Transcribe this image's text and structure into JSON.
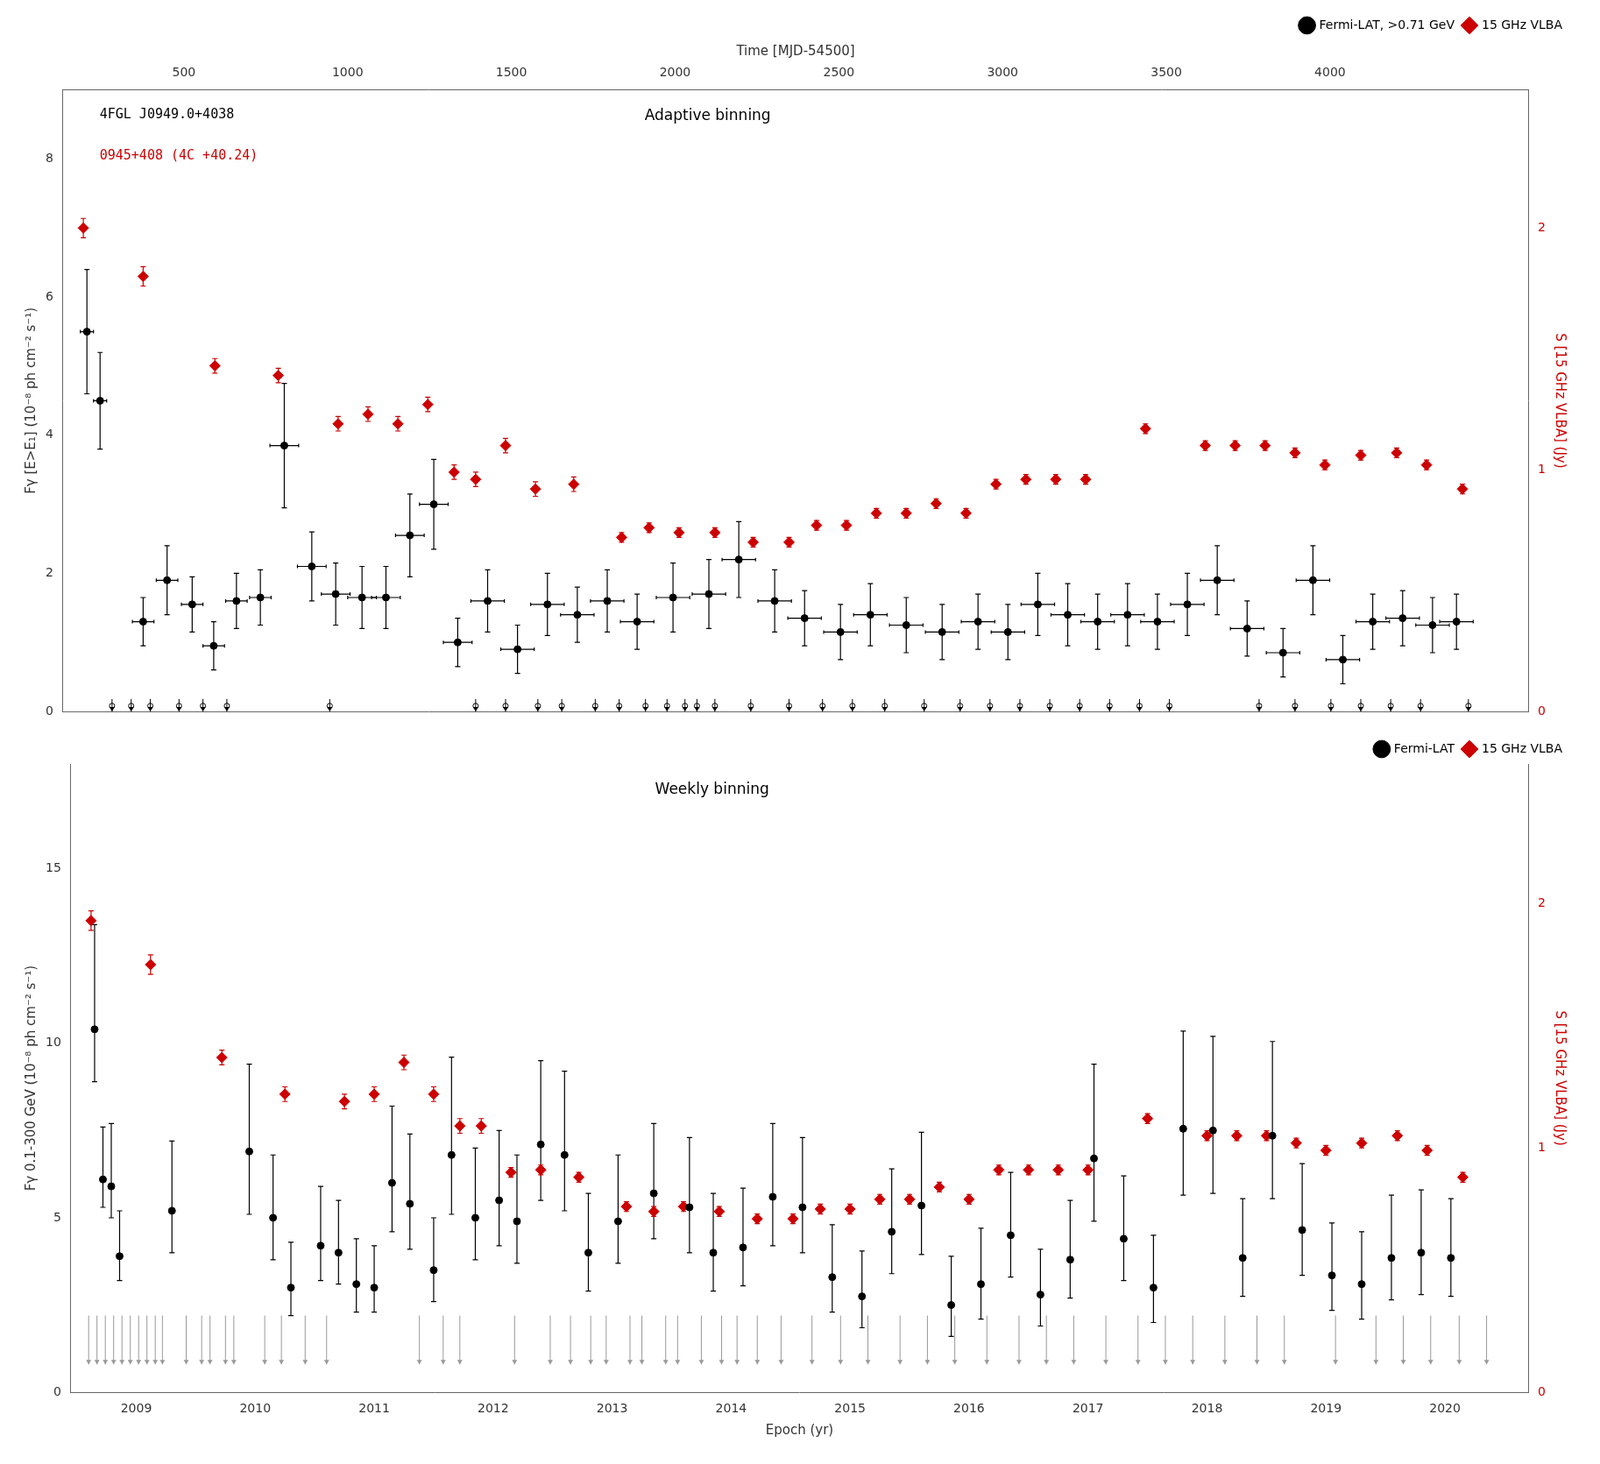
{
  "chart_data": [
    {
      "type": "scatter",
      "x2label": "Time [MJD-54500]",
      "ylabel": "Fγ [E>E₁] (10⁻⁸ ph cm⁻² s⁻¹)",
      "y2label": "S [15 GHz VLBA] (Jy)",
      "xlim": [
        2008.45,
        2020.7
      ],
      "x2lim": [
        130.8625,
        4605.175
      ],
      "x2ticks": [
        500,
        1000,
        1500,
        2000,
        2500,
        3000,
        3500,
        4000
      ],
      "ylim": [
        0,
        9
      ],
      "yticks": [
        0,
        2,
        4,
        6,
        8
      ],
      "y2lim": [
        0,
        2.571
      ],
      "y2ticks": [
        0,
        1,
        2
      ],
      "grid": false,
      "legend": "upper right",
      "source_labels": [
        {
          "text": "4FGL J0949.0+4038",
          "color": "#000000"
        },
        {
          "text": "0945+408 (4C +40.24)",
          "color": "#cc0000"
        }
      ],
      "binning_label": "Adaptive binning",
      "series": [
        {
          "name": "Fermi-LAT, >0.71 GeV",
          "color": "#000000",
          "marker": "circle",
          "axis": "y",
          "x": [
            2008.65,
            2008.76,
            2009.12,
            2009.32,
            2009.53,
            2009.71,
            2009.9,
            2010.1,
            2010.3,
            2010.53,
            2010.73,
            2010.95,
            2011.15,
            2011.35,
            2011.55,
            2011.75,
            2012.0,
            2012.25,
            2012.5,
            2012.75,
            2013.0,
            2013.25,
            2013.55,
            2013.85,
            2014.1,
            2014.4,
            2014.65,
            2014.95,
            2015.2,
            2015.5,
            2015.8,
            2016.1,
            2016.35,
            2016.6,
            2016.85,
            2017.1,
            2017.35,
            2017.6,
            2017.85,
            2018.1,
            2018.35,
            2018.65,
            2018.9,
            2019.15,
            2019.4,
            2019.65,
            2019.9,
            2020.1
          ],
          "values": [
            5.5,
            4.5,
            1.3,
            1.9,
            1.55,
            0.95,
            1.6,
            1.65,
            3.85,
            2.1,
            1.7,
            1.65,
            1.65,
            2.55,
            3.0,
            1.0,
            1.6,
            0.9,
            1.55,
            1.4,
            1.6,
            1.3,
            1.65,
            1.7,
            2.2,
            1.6,
            1.35,
            1.15,
            1.4,
            1.25,
            1.15,
            1.3,
            1.15,
            1.55,
            1.4,
            1.3,
            1.4,
            1.3,
            1.55,
            1.9,
            1.2,
            0.85,
            1.9,
            0.75,
            1.3,
            1.35,
            1.25,
            1.3
          ],
          "yerr_lo": [
            0.9,
            0.7,
            0.35,
            0.5,
            0.4,
            0.35,
            0.4,
            0.4,
            0.9,
            0.5,
            0.45,
            0.45,
            0.45,
            0.6,
            0.65,
            0.35,
            0.45,
            0.35,
            0.45,
            0.4,
            0.45,
            0.4,
            0.5,
            0.5,
            0.55,
            0.45,
            0.4,
            0.4,
            0.45,
            0.4,
            0.4,
            0.4,
            0.4,
            0.45,
            0.45,
            0.4,
            0.45,
            0.4,
            0.45,
            0.5,
            0.4,
            0.35,
            0.5,
            0.35,
            0.4,
            0.4,
            0.4,
            0.4
          ],
          "yerr_hi": [
            0.9,
            0.7,
            0.35,
            0.5,
            0.4,
            0.35,
            0.4,
            0.4,
            0.9,
            0.5,
            0.45,
            0.45,
            0.45,
            0.6,
            0.65,
            0.35,
            0.45,
            0.35,
            0.45,
            0.4,
            0.45,
            0.4,
            0.5,
            0.5,
            0.55,
            0.45,
            0.4,
            0.4,
            0.45,
            0.4,
            0.4,
            0.4,
            0.4,
            0.45,
            0.45,
            0.4,
            0.45,
            0.4,
            0.45,
            0.5,
            0.4,
            0.35,
            0.5,
            0.35,
            0.4,
            0.4,
            0.4,
            0.4
          ],
          "xerr": [
            0.055,
            0.055,
            0.09,
            0.09,
            0.09,
            0.09,
            0.09,
            0.09,
            0.12,
            0.12,
            0.12,
            0.12,
            0.12,
            0.12,
            0.12,
            0.12,
            0.14,
            0.14,
            0.14,
            0.14,
            0.14,
            0.14,
            0.14,
            0.14,
            0.14,
            0.14,
            0.14,
            0.14,
            0.14,
            0.14,
            0.14,
            0.14,
            0.14,
            0.14,
            0.14,
            0.14,
            0.14,
            0.14,
            0.14,
            0.14,
            0.14,
            0.14,
            0.14,
            0.14,
            0.14,
            0.14,
            0.14,
            0.14
          ]
        },
        {
          "name": "15 GHz VLBA",
          "color": "#cc0000",
          "marker": "diamond",
          "axis": "y2",
          "x": [
            2008.62,
            2009.12,
            2009.72,
            2010.25,
            2010.75,
            2011.0,
            2011.25,
            2011.5,
            2011.72,
            2011.9,
            2012.15,
            2012.4,
            2012.72,
            2013.12,
            2013.35,
            2013.6,
            2013.9,
            2014.22,
            2014.52,
            2014.75,
            2015.0,
            2015.25,
            2015.5,
            2015.75,
            2016.0,
            2016.25,
            2016.5,
            2016.75,
            2017.0,
            2017.5,
            2018.0,
            2018.25,
            2018.5,
            2018.75,
            2019.0,
            2019.3,
            2019.6,
            2019.85,
            2020.15
          ],
          "values": [
            2.0,
            1.8,
            1.43,
            1.39,
            1.19,
            1.23,
            1.19,
            1.27,
            0.99,
            0.96,
            1.1,
            0.92,
            0.94,
            0.72,
            0.76,
            0.74,
            0.74,
            0.7,
            0.7,
            0.77,
            0.77,
            0.82,
            0.82,
            0.86,
            0.82,
            0.94,
            0.96,
            0.96,
            0.96,
            1.17,
            1.1,
            1.1,
            1.1,
            1.07,
            1.02,
            1.06,
            1.07,
            1.02,
            0.92
          ],
          "yerr": [
            0.04,
            0.04,
            0.03,
            0.03,
            0.03,
            0.03,
            0.03,
            0.03,
            0.03,
            0.03,
            0.03,
            0.03,
            0.03,
            0.02,
            0.02,
            0.02,
            0.02,
            0.02,
            0.02,
            0.02,
            0.02,
            0.02,
            0.02,
            0.02,
            0.02,
            0.02,
            0.02,
            0.02,
            0.02,
            0.02,
            0.02,
            0.02,
            0.02,
            0.02,
            0.02,
            0.02,
            0.02,
            0.02,
            0.02
          ]
        }
      ],
      "upper_limits": {
        "color": "#000000",
        "y": 0.08,
        "arrow_from": 0.18,
        "arrow_to": 0.0,
        "x": [
          2008.86,
          2009.02,
          2009.18,
          2009.42,
          2009.62,
          2009.82,
          2010.68,
          2011.9,
          2012.15,
          2012.42,
          2012.62,
          2012.9,
          2013.1,
          2013.32,
          2013.5,
          2013.65,
          2013.75,
          2013.9,
          2014.2,
          2014.52,
          2014.8,
          2015.05,
          2015.32,
          2015.65,
          2015.95,
          2016.2,
          2016.45,
          2016.7,
          2016.95,
          2017.2,
          2017.45,
          2017.7,
          2018.45,
          2018.75,
          2019.05,
          2019.3,
          2019.55,
          2019.8,
          2020.2
        ]
      }
    },
    {
      "type": "scatter",
      "xlabel": "Epoch (yr)",
      "ylabel": "Fγ 0.1-300 GeV (10⁻⁸ ph cm⁻² s⁻¹)",
      "y2label": "S [15 GHz VLBA] (Jy)",
      "xlim": [
        2008.45,
        2020.7
      ],
      "xticks": [
        2009,
        2010,
        2011,
        2012,
        2013,
        2014,
        2015,
        2016,
        2017,
        2018,
        2019,
        2020
      ],
      "ylim": [
        0,
        18
      ],
      "yticks": [
        0,
        5,
        10,
        15
      ],
      "y2lim": [
        0,
        2.571
      ],
      "y2ticks": [
        0,
        1,
        2
      ],
      "grid": false,
      "legend": "upper right",
      "binning_label": "Weekly binning",
      "series": [
        {
          "name": "Fermi-LAT",
          "color": "#000000",
          "marker": "circle",
          "axis": "y",
          "x": [
            2008.65,
            2008.72,
            2008.79,
            2008.86,
            2009.3,
            2009.95,
            2010.15,
            2010.3,
            2010.55,
            2010.7,
            2010.85,
            2011.0,
            2011.15,
            2011.3,
            2011.5,
            2011.65,
            2011.85,
            2012.05,
            2012.2,
            2012.4,
            2012.6,
            2012.8,
            2013.05,
            2013.35,
            2013.65,
            2013.85,
            2014.1,
            2014.35,
            2014.6,
            2014.85,
            2015.1,
            2015.35,
            2015.6,
            2015.85,
            2016.1,
            2016.35,
            2016.6,
            2016.85,
            2017.05,
            2017.3,
            2017.55,
            2017.8,
            2018.05,
            2018.3,
            2018.55,
            2018.8,
            2019.05,
            2019.3,
            2019.55,
            2019.8,
            2020.05
          ],
          "values": [
            10.4,
            6.1,
            5.9,
            3.9,
            5.2,
            6.9,
            5.0,
            3.0,
            4.2,
            4.0,
            3.1,
            3.0,
            6.0,
            5.4,
            3.5,
            6.8,
            5.0,
            5.5,
            4.9,
            7.1,
            6.8,
            4.0,
            4.9,
            5.7,
            5.3,
            4.0,
            4.15,
            5.6,
            5.3,
            3.3,
            2.75,
            4.6,
            5.35,
            2.5,
            3.1,
            4.5,
            2.8,
            3.8,
            6.7,
            4.4,
            3.0,
            7.55,
            7.5,
            3.85,
            7.35,
            4.65,
            3.35,
            3.1,
            3.85,
            4.0,
            3.85
          ],
          "yerr_lo": [
            1.5,
            0.8,
            0.9,
            0.7,
            1.2,
            1.8,
            1.2,
            0.8,
            1.0,
            0.9,
            0.8,
            0.7,
            1.4,
            1.3,
            0.9,
            1.7,
            1.2,
            1.3,
            1.2,
            1.6,
            1.6,
            1.1,
            1.2,
            1.3,
            1.3,
            1.1,
            1.1,
            1.4,
            1.3,
            1.0,
            0.9,
            1.2,
            1.4,
            0.9,
            1.0,
            1.2,
            0.9,
            1.1,
            1.8,
            1.2,
            1.0,
            1.9,
            1.8,
            1.1,
            1.8,
            1.3,
            1.0,
            1.0,
            1.2,
            1.2,
            1.1
          ],
          "yerr_hi": [
            3.0,
            1.5,
            1.8,
            1.3,
            2.0,
            2.5,
            1.8,
            1.3,
            1.7,
            1.5,
            1.3,
            1.2,
            2.2,
            2.0,
            1.5,
            2.8,
            2.0,
            2.0,
            1.9,
            2.4,
            2.4,
            1.7,
            1.9,
            2.0,
            2.0,
            1.7,
            1.7,
            2.1,
            2.0,
            1.5,
            1.3,
            1.8,
            2.1,
            1.4,
            1.6,
            1.8,
            1.3,
            1.7,
            2.7,
            1.8,
            1.5,
            2.8,
            2.7,
            1.7,
            2.7,
            1.9,
            1.5,
            1.5,
            1.8,
            1.8,
            1.7
          ]
        },
        {
          "name": "15 GHz VLBA",
          "color": "#cc0000",
          "marker": "diamond",
          "axis": "y2",
          "x": [
            2008.62,
            2009.12,
            2009.72,
            2010.25,
            2010.75,
            2011.0,
            2011.25,
            2011.5,
            2011.72,
            2011.9,
            2012.15,
            2012.4,
            2012.72,
            2013.12,
            2013.35,
            2013.6,
            2013.9,
            2014.22,
            2014.52,
            2014.75,
            2015.0,
            2015.25,
            2015.5,
            2015.75,
            2016.0,
            2016.25,
            2016.5,
            2016.75,
            2017.0,
            2017.5,
            2018.0,
            2018.25,
            2018.5,
            2018.75,
            2019.0,
            2019.3,
            2019.6,
            2019.85,
            2020.15
          ],
          "values": [
            1.93,
            1.75,
            1.37,
            1.22,
            1.19,
            1.22,
            1.35,
            1.22,
            1.09,
            1.09,
            0.9,
            0.91,
            0.88,
            0.76,
            0.74,
            0.76,
            0.74,
            0.71,
            0.71,
            0.75,
            0.75,
            0.79,
            0.79,
            0.84,
            0.79,
            0.91,
            0.91,
            0.91,
            0.91,
            1.12,
            1.05,
            1.05,
            1.05,
            1.02,
            0.99,
            1.02,
            1.05,
            0.99,
            0.88
          ],
          "yerr": [
            0.04,
            0.04,
            0.03,
            0.03,
            0.03,
            0.03,
            0.03,
            0.03,
            0.03,
            0.03,
            0.02,
            0.02,
            0.02,
            0.02,
            0.02,
            0.02,
            0.02,
            0.02,
            0.02,
            0.02,
            0.02,
            0.02,
            0.02,
            0.02,
            0.02,
            0.02,
            0.02,
            0.02,
            0.02,
            0.02,
            0.02,
            0.02,
            0.02,
            0.02,
            0.02,
            0.02,
            0.02,
            0.02,
            0.02
          ]
        }
      ],
      "upper_limits": {
        "color": "#999999",
        "arrow_from": 2.2,
        "arrow_to": 0.8,
        "x": [
          2008.6,
          2008.67,
          2008.74,
          2008.81,
          2008.88,
          2008.95,
          2009.02,
          2009.09,
          2009.16,
          2009.22,
          2009.42,
          2009.55,
          2009.62,
          2009.75,
          2009.82,
          2010.08,
          2010.22,
          2010.42,
          2010.6,
          2011.38,
          2011.58,
          2011.72,
          2012.18,
          2012.48,
          2012.65,
          2012.82,
          2012.95,
          2013.15,
          2013.25,
          2013.45,
          2013.55,
          2013.75,
          2013.92,
          2014.05,
          2014.22,
          2014.42,
          2014.68,
          2014.92,
          2015.15,
          2015.42,
          2015.65,
          2015.88,
          2016.15,
          2016.42,
          2016.65,
          2016.88,
          2017.15,
          2017.42,
          2017.65,
          2017.88,
          2018.15,
          2018.42,
          2018.65,
          2019.08,
          2019.42,
          2019.65,
          2019.88,
          2020.12,
          2020.35
        ]
      }
    }
  ]
}
